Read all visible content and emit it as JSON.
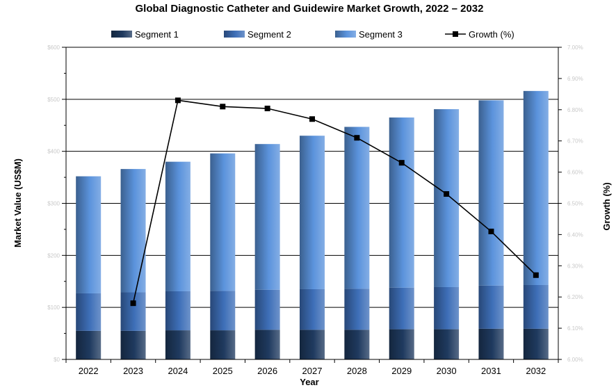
{
  "chart_data": {
    "type": "bar",
    "title": "Global Diagnostic Catheter and Guidewire Market Growth, 2022 – 2032",
    "xlabel": "Year",
    "ylabel": "Market Value (US$M)",
    "y2label": "Growth (%)",
    "categories": [
      "2022",
      "2023",
      "2024",
      "2025",
      "2026",
      "2027",
      "2028",
      "2029",
      "2030",
      "2031",
      "2032"
    ],
    "series": [
      {
        "name": "Segment 1",
        "type": "bar",
        "color": "#1f3a5f",
        "values": [
          55,
          55,
          56,
          56,
          57,
          57,
          57,
          58,
          58,
          59,
          59
        ]
      },
      {
        "name": "Segment 2",
        "type": "bar",
        "color": "#3e6fb8",
        "values": [
          72,
          74,
          75,
          76,
          77,
          78,
          79,
          80,
          81,
          83,
          84
        ]
      },
      {
        "name": "Segment 3",
        "type": "bar",
        "color": "#5b93dc",
        "values": [
          225,
          237,
          249,
          264,
          280,
          295,
          311,
          327,
          342,
          356,
          373
        ]
      },
      {
        "name": "Growth (%)",
        "type": "line",
        "axis": "right",
        "color": "#000000",
        "values": [
          null,
          6.18,
          6.83,
          6.81,
          6.804,
          6.77,
          6.71,
          6.63,
          6.53,
          6.41,
          6.27
        ]
      }
    ],
    "ylim": [
      0,
      600
    ],
    "yticks": [
      0,
      100,
      200,
      300,
      400,
      500,
      600
    ],
    "ytick_labels": [
      "$0",
      "$100",
      "$200",
      "$300",
      "$400",
      "$500",
      "$600"
    ],
    "y2lim": [
      6.0,
      7.0
    ],
    "y2ticks": [
      6.0,
      6.1,
      6.2,
      6.3,
      6.4,
      6.5,
      6.6,
      6.7,
      6.8,
      6.9,
      7.0
    ],
    "y2tick_labels": [
      "6.00%",
      "6.10%",
      "6.20%",
      "6.30%",
      "6.40%",
      "6.50%",
      "6.60%",
      "6.70%",
      "6.80%",
      "6.90%",
      "7.00%"
    ],
    "grid": true,
    "legend": "top"
  }
}
